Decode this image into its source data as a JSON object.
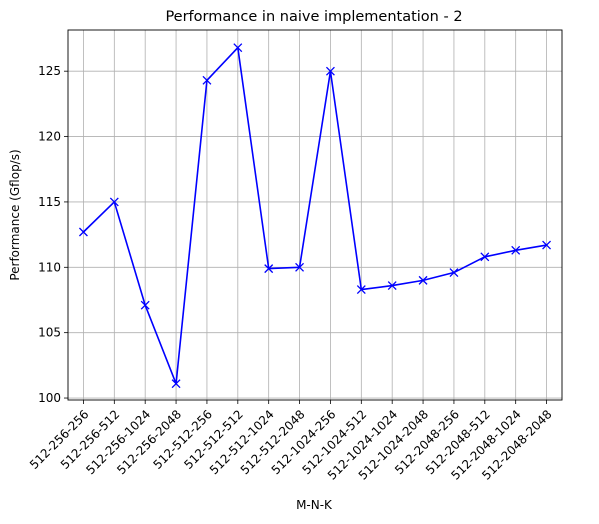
{
  "chart_data": {
    "type": "line",
    "title": "Performance in naive implementation - 2",
    "xlabel": "M-N-K",
    "ylabel": "Performance (Gflop/s)",
    "categories": [
      "512-256-256",
      "512-256-512",
      "512-256-1024",
      "512-256-2048",
      "512-512-256",
      "512-512-512",
      "512-512-1024",
      "512-512-2048",
      "512-1024-256",
      "512-1024-512",
      "512-1024-1024",
      "512-1024-2048",
      "512-2048-256",
      "512-2048-512",
      "512-2048-1024",
      "512-2048-2048"
    ],
    "series": [
      {
        "values": [
          112.7,
          115.0,
          107.1,
          101.1,
          124.3,
          126.8,
          109.9,
          110.0,
          125.0,
          108.3,
          108.6,
          109.0,
          109.6,
          110.8,
          111.3,
          111.7
        ]
      }
    ],
    "ylim": [
      99.85,
      128.15
    ],
    "yticks": [
      100,
      105,
      110,
      115,
      120,
      125
    ],
    "grid": true,
    "line_color": "#0000ff",
    "marker": "x"
  }
}
